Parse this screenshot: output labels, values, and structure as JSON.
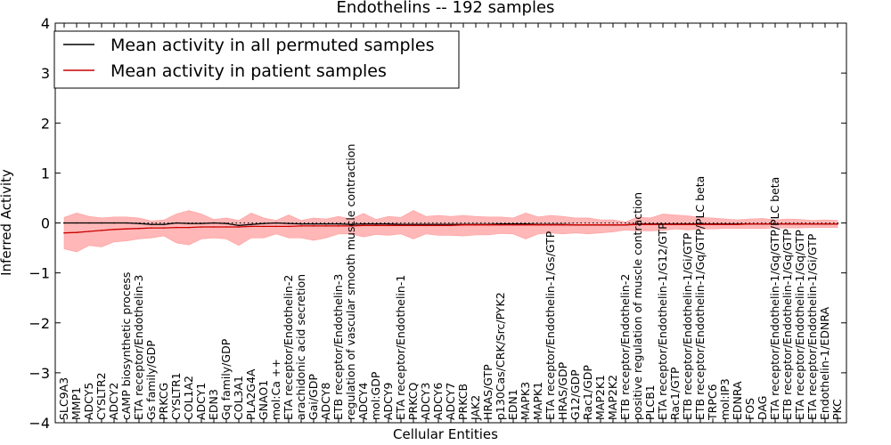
{
  "chart_data": {
    "type": "line",
    "title": "Endothelins -- 192 samples",
    "xlabel": "Cellular Entities",
    "ylabel": "Inferred Activity",
    "ylim": [
      -4,
      4
    ],
    "yticks": [
      "−4",
      "−3",
      "−2",
      "−1",
      "0",
      "1",
      "2",
      "3",
      "4"
    ],
    "legend": {
      "placement": "top-left",
      "entries": [
        {
          "label": "Mean activity in all permuted samples",
          "color": "#000000"
        },
        {
          "label": "Mean activity in patient samples",
          "color": "#cc0000"
        }
      ]
    },
    "band_color": "#ff9999",
    "reference_line": 0,
    "categories": [
      "SLC9A3",
      "MMP1",
      "ADCY5",
      "CYSLTR2",
      "ADCY2",
      "cAMP biosynthetic process",
      "ETA receptor/Endothelin-3",
      "Gs family/GDP",
      "PRKCG",
      "CYSLTR1",
      "COL1A2",
      "ADCY1",
      "EDN3",
      "Gq family/GDP",
      "COL3A1",
      "PLA2G4A",
      "GNAO1",
      "mol:Ca ++",
      "ETA receptor/Endothelin-2",
      "arachidonic acid secretion",
      "Gai/GDP",
      "ADCY8",
      "ETB receptor/Endothelin-3",
      "regulation of vascular smooth muscle contraction",
      "ADCY4",
      "mol:GDP",
      "ADCY9",
      "ETA receptor/Endothelin-1",
      "PRKCQ",
      "ADCY3",
      "ADCY6",
      "ADCY7",
      "PRKCB",
      "JAK2",
      "HRAS/GTP",
      "p130Cas/CRK/Src/PYK2",
      "EDN1",
      "MAPK3",
      "MAPK1",
      "ETA receptor/Endothelin-1/Gs/GTP",
      "HRAS/GDP",
      "G12/GDP",
      "Rac1/GDP",
      "MAP2K1",
      "MAP2K2",
      "ETB receptor/Endothelin-2",
      "positive regulation of muscle contraction",
      "PLCB1",
      "ETA receptor/Endothelin-1/G12/GTP",
      "Rac1/GTP",
      "ETB receptor/Endothelin-1/Gi/GTP",
      "ETB receptor/Endothelin-1/Gq/GTP/PLC beta",
      "TRPC6",
      "mol:IP3",
      "EDNRA",
      "FOS",
      "DAG",
      "ETA receptor/Endothelin-1/Gq/GTP/PLC beta",
      "ETB receptor/Endothelin-1/Gq/GTP",
      "ETA receptor/Endothelin-1/Gq/GTP",
      "ETA receptor/Endothelin-1/Gi/GTP",
      "Endothelin-1/EDNRA",
      "PKC"
    ],
    "series": [
      {
        "name": "Mean activity in all permuted samples",
        "color": "#000000",
        "values": [
          0.0,
          0.0,
          0.0,
          0.0,
          0.0,
          0.0,
          -0.01,
          -0.03,
          -0.03,
          0.0,
          -0.01,
          -0.01,
          0.0,
          -0.01,
          -0.05,
          -0.03,
          -0.01,
          0.0,
          -0.01,
          -0.02,
          -0.02,
          -0.02,
          -0.02,
          -0.03,
          -0.02,
          -0.02,
          -0.02,
          -0.03,
          -0.03,
          -0.03,
          -0.03,
          -0.03,
          -0.03,
          -0.03,
          -0.03,
          -0.02,
          -0.02,
          -0.02,
          -0.03,
          -0.03,
          -0.03,
          -0.04,
          -0.04,
          -0.04,
          -0.04,
          -0.04,
          -0.02,
          -0.02,
          -0.02,
          -0.02,
          -0.02,
          -0.02,
          -0.02,
          -0.02,
          -0.02,
          -0.02,
          -0.02,
          -0.02,
          -0.02,
          -0.02,
          -0.02,
          -0.02,
          -0.02
        ]
      },
      {
        "name": "Mean activity in patient samples",
        "color": "#cc0000",
        "values": [
          -0.2,
          -0.19,
          -0.17,
          -0.15,
          -0.13,
          -0.12,
          -0.11,
          -0.1,
          -0.1,
          -0.09,
          -0.09,
          -0.08,
          -0.08,
          -0.08,
          -0.08,
          -0.07,
          -0.07,
          -0.07,
          -0.07,
          -0.06,
          -0.06,
          -0.06,
          -0.06,
          -0.06,
          -0.05,
          -0.05,
          -0.05,
          -0.05,
          -0.05,
          -0.05,
          -0.05,
          -0.05,
          -0.04,
          -0.04,
          -0.04,
          -0.04,
          -0.04,
          -0.04,
          -0.04,
          -0.04,
          -0.04,
          -0.04,
          -0.04,
          -0.04,
          -0.04,
          -0.04,
          -0.03,
          -0.03,
          -0.03,
          -0.03,
          -0.03,
          -0.03,
          -0.03,
          -0.03,
          -0.03,
          -0.02,
          -0.02,
          -0.02,
          -0.02,
          -0.02,
          -0.02,
          -0.02,
          -0.02
        ]
      }
    ],
    "band": {
      "upper": [
        0.11,
        0.2,
        0.13,
        0.1,
        0.12,
        0.12,
        0.1,
        0.04,
        0.06,
        0.18,
        0.25,
        0.18,
        0.07,
        0.1,
        0.05,
        0.2,
        0.1,
        0.05,
        0.16,
        0.05,
        0.1,
        0.08,
        0.13,
        0.08,
        0.19,
        0.07,
        0.13,
        0.11,
        0.25,
        0.13,
        0.15,
        0.13,
        0.15,
        0.13,
        0.12,
        0.12,
        0.1,
        0.2,
        0.12,
        0.15,
        0.13,
        0.1,
        0.1,
        0.06,
        0.06,
        0.02,
        0.12,
        0.1,
        0.18,
        0.16,
        0.14,
        0.11,
        0.1,
        0.08,
        0.06,
        0.08,
        0.09,
        0.06,
        0.08,
        0.07,
        0.05,
        0.06,
        0.05
      ],
      "lower": [
        -0.52,
        -0.58,
        -0.45,
        -0.48,
        -0.38,
        -0.36,
        -0.32,
        -0.3,
        -0.26,
        -0.4,
        -0.44,
        -0.32,
        -0.3,
        -0.32,
        -0.45,
        -0.3,
        -0.3,
        -0.22,
        -0.3,
        -0.3,
        -0.35,
        -0.3,
        -0.22,
        -0.22,
        -0.28,
        -0.23,
        -0.25,
        -0.22,
        -0.32,
        -0.22,
        -0.25,
        -0.25,
        -0.26,
        -0.24,
        -0.24,
        -0.21,
        -0.22,
        -0.32,
        -0.22,
        -0.2,
        -0.22,
        -0.2,
        -0.22,
        -0.2,
        -0.18,
        -0.14,
        -0.16,
        -0.16,
        -0.15,
        -0.12,
        -0.14,
        -0.12,
        -0.12,
        -0.11,
        -0.11,
        -0.11,
        -0.11,
        -0.1,
        -0.1,
        -0.1,
        -0.09,
        -0.09,
        -0.09
      ]
    }
  }
}
